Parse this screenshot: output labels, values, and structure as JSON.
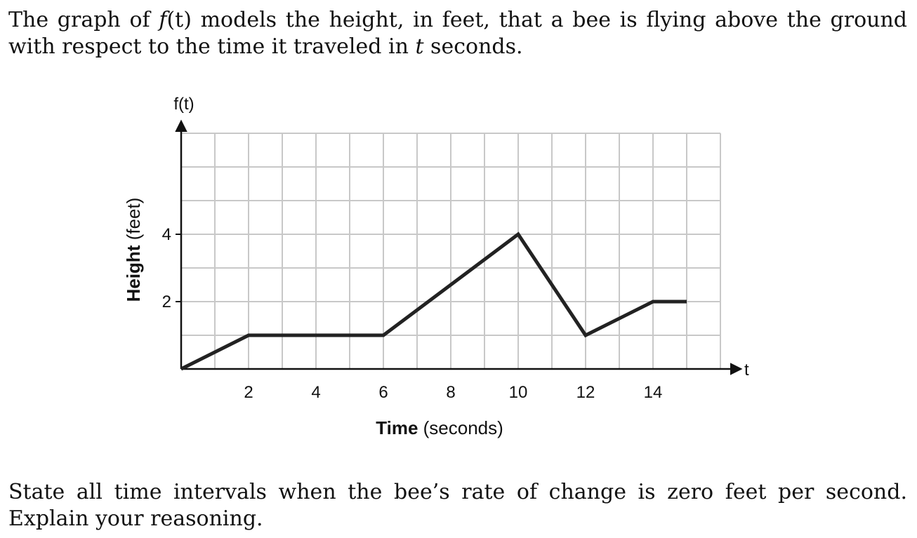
{
  "problem": {
    "intro_1": "The graph of ",
    "func_name": "f",
    "func_arg": "(t)",
    "intro_2": " models the height, in feet, that a bee is flying above the ground with respect to the time it traveled in ",
    "var_t": "t",
    "intro_3": " seconds.",
    "question": "State all time intervals when the bee’s rate of change is zero feet per second. Explain your reasoning."
  },
  "chart_data": {
    "type": "line",
    "title": "",
    "xlabel_bold": "Time",
    "xlabel_rest": " (seconds)",
    "ylabel_bold": "Height",
    "ylabel_rest": " (feet)",
    "x_axis_name": "t",
    "y_axis_name": "f(t)",
    "xlim": [
      0,
      16
    ],
    "ylim": [
      0,
      7
    ],
    "x_grid_step": 1,
    "y_grid_step": 1,
    "x_ticks": [
      2,
      4,
      6,
      8,
      10,
      12,
      14
    ],
    "y_ticks": [
      2,
      4
    ],
    "grid": true,
    "series": [
      {
        "x": [
          0,
          2,
          6,
          10,
          12,
          14,
          15
        ],
        "y": [
          0,
          1,
          1,
          4,
          1,
          2,
          2
        ]
      }
    ],
    "colors": {
      "line": "#222222",
      "grid": "#c8c8c8",
      "axis": "#111111"
    }
  }
}
